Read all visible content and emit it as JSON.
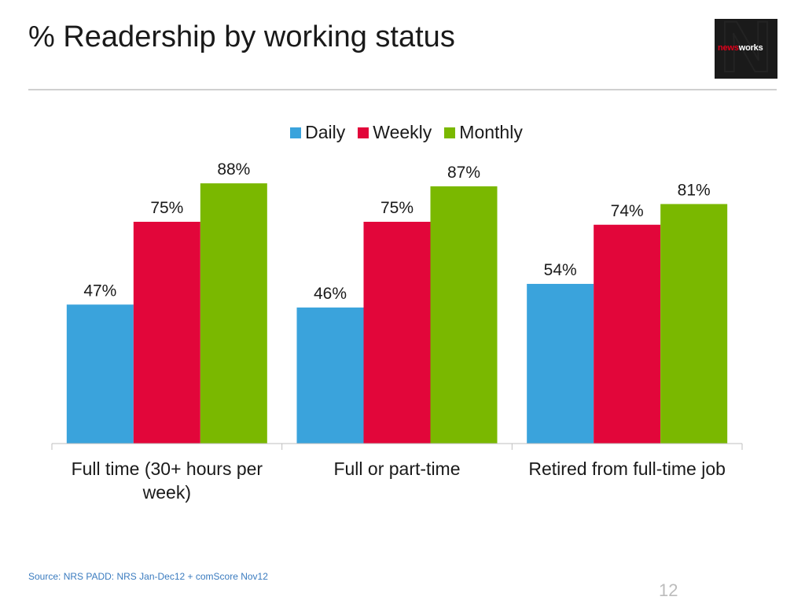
{
  "slide": {
    "title": "% Readership by working status",
    "source": "Source: NRS PADD: NRS Jan-Dec12 + comScore Nov12",
    "page_number": "12",
    "logo": {
      "text_news": "news",
      "text_works": "works",
      "letter": "N"
    }
  },
  "colors": {
    "daily": "#3aa3dc",
    "weekly": "#e2063a",
    "monthly": "#7ab800"
  },
  "chart_data": {
    "type": "bar",
    "title": "% Readership by working status",
    "categories": [
      [
        "Full time (30+ hours per",
        "week)"
      ],
      [
        "Full or part-time"
      ],
      [
        "Retired from full-time job"
      ]
    ],
    "series": [
      {
        "name": "Daily",
        "values": [
          47,
          46,
          54
        ],
        "labels": [
          "47%",
          "46%",
          "54%"
        ]
      },
      {
        "name": "Weekly",
        "values": [
          75,
          75,
          74
        ],
        "labels": [
          "75%",
          "75%",
          "74%"
        ]
      },
      {
        "name": "Monthly",
        "values": [
          88,
          87,
          81
        ],
        "labels": [
          "88%",
          "87%",
          "81%"
        ]
      }
    ],
    "ylim": [
      0,
      100
    ],
    "grid": false,
    "legend": "top-center",
    "xlabel": "",
    "ylabel": ""
  }
}
